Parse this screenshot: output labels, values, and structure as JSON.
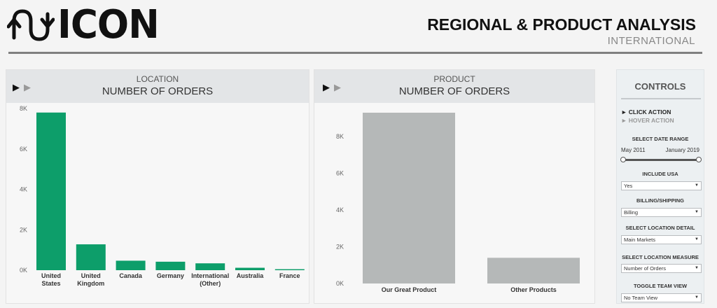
{
  "header": {
    "logo_text": "ICON",
    "title": "REGIONAL & PRODUCT ANALYSIS",
    "subtitle": "INTERNATIONAL"
  },
  "location_panel": {
    "kicker": "LOCATION",
    "title": "NUMBER OF ORDERS"
  },
  "product_panel": {
    "kicker": "PRODUCT",
    "title": "NUMBER OF ORDERS"
  },
  "controls": {
    "title": "CONTROLS",
    "click_action": "► CLICK ACTION",
    "hover_action": "► HOVER ACTION",
    "date_range_label": "SELECT DATE RANGE",
    "date_start": "May 2011",
    "date_end": "January 2019",
    "date_range_fraction": [
      0,
      1
    ],
    "include_usa_label": "INCLUDE USA",
    "include_usa_value": "Yes",
    "billing_label": "BILLING/SHIPPING",
    "billing_value": "Billing",
    "location_detail_label": "SELECT LOCATION DETAIL",
    "location_detail_value": "Main Markets",
    "location_measure_label": "SELECT LOCATION MEASURE",
    "location_measure_value": "Number of Orders",
    "team_view_label": "TOGGLE TEAM VIEW",
    "team_view_value": "No Team View"
  },
  "colors": {
    "location_bar": "#0d9e6a",
    "product_bar": "#b5b8b8",
    "axis_text": "#666666"
  },
  "chart_data": [
    {
      "type": "bar",
      "title": "NUMBER OF ORDERS",
      "categories": [
        "United States",
        "United Kingdom",
        "Canada",
        "Germany",
        "International (Other)",
        "Australia",
        "France"
      ],
      "category_lines": [
        [
          "United",
          "States"
        ],
        [
          "United",
          "Kingdom"
        ],
        [
          "Canada"
        ],
        [
          "Germany"
        ],
        [
          "International",
          "(Other)"
        ],
        [
          "Australia"
        ],
        [
          "France"
        ]
      ],
      "values": [
        7800,
        1280,
        470,
        420,
        340,
        120,
        50
      ],
      "ylim": [
        0,
        8000
      ],
      "yticks": [
        0,
        2000,
        4000,
        6000,
        8000
      ],
      "ytick_labels": [
        "0K",
        "2K",
        "4K",
        "6K",
        "8K"
      ],
      "grid": false
    },
    {
      "type": "bar",
      "title": "NUMBER OF ORDERS",
      "categories": [
        "Our Great Product",
        "Other Products"
      ],
      "category_lines": [
        [
          "Our Great Product"
        ],
        [
          "Other Products"
        ]
      ],
      "values": [
        9300,
        1400
      ],
      "ylim": [
        0,
        9300
      ],
      "yticks": [
        0,
        2000,
        4000,
        6000,
        8000
      ],
      "ytick_labels": [
        "0K",
        "2K",
        "4K",
        "6K",
        "8K"
      ],
      "grid": false
    }
  ]
}
